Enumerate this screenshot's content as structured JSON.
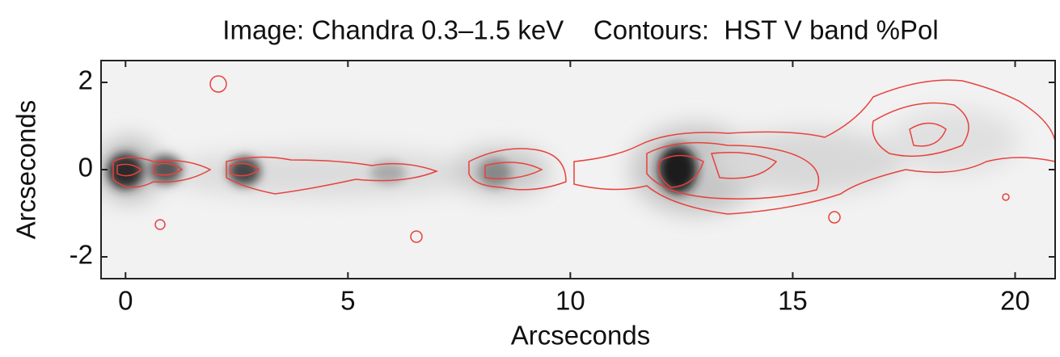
{
  "chart_data": {
    "type": "image",
    "title": "Image: Chandra 0.3–1.5 keV    Contours:  HST V band %Pol",
    "xlabel": "Arcseconds",
    "ylabel": "Arcseconds",
    "xlim": [
      -0.55,
      20.9
    ],
    "ylim": [
      -2.5,
      2.5
    ],
    "xticks": [
      0,
      5,
      10,
      15,
      20
    ],
    "yticks": [
      -2,
      0,
      2
    ],
    "contour_color": "#e8413c"
  }
}
